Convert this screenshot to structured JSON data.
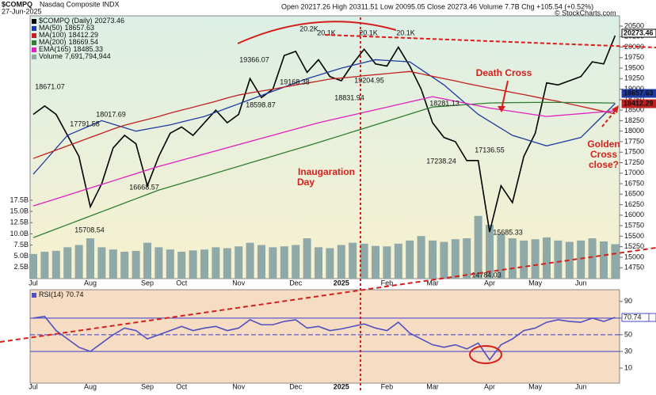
{
  "header": {
    "symbol": "$COMPQ",
    "name": "Nasdaq Composite INDX",
    "date": "27-Jun-2025",
    "quote": "Open 20217.26 High 20311.51 Low 20095.05 Close 20273.46 Volume 7.7B Chg +105.54 (+0.52%)",
    "credit": "© StockCharts.com"
  },
  "chart_data": [
    {
      "type": "line",
      "categories": [
        "Jul",
        null,
        null,
        null,
        null,
        "Aug",
        null,
        null,
        null,
        null,
        "Sep",
        null,
        null,
        "Oct",
        null,
        null,
        null,
        null,
        "Nov",
        null,
        null,
        null,
        null,
        "Dec",
        null,
        null,
        null,
        "2025",
        null,
        null,
        null,
        "Feb",
        null,
        null,
        null,
        "Mar",
        null,
        null,
        null,
        null,
        "Apr",
        null,
        null,
        null,
        "May",
        null,
        null,
        null,
        "Jun",
        null,
        null,
        null
      ],
      "ylim": [
        14490,
        20745
      ],
      "yticks": [
        14750,
        15000,
        15250,
        15500,
        15750,
        16000,
        16250,
        16500,
        16750,
        17000,
        17250,
        17500,
        17750,
        18000,
        18250,
        18500,
        18750,
        19000,
        19250,
        19500,
        19750,
        20000,
        20250,
        20500
      ],
      "series": [
        {
          "name": "$COMPQ (Daily)",
          "color": "#000000",
          "values": [
            18400,
            18600,
            18400,
            17900,
            17400,
            16200,
            16750,
            17600,
            17900,
            17700,
            16700,
            17400,
            17950,
            18100,
            17900,
            18200,
            18500,
            18200,
            18400,
            19250,
            18800,
            19000,
            19800,
            19900,
            19400,
            19700,
            19300,
            19200,
            19600,
            19950,
            19600,
            19550,
            20000,
            19550,
            19000,
            18200,
            17850,
            17750,
            17300,
            17300,
            15600,
            16700,
            16300,
            17400,
            17950,
            19150,
            19100,
            19200,
            19300,
            19650,
            19600,
            20273.46
          ]
        },
        {
          "name": "MA(50)",
          "color": "#1f3aa0",
          "values": [
            16975,
            17283,
            17592,
            17900,
            18017,
            18133,
            18250,
            18167,
            18083,
            18000,
            18050,
            18100,
            18150,
            18217,
            18283,
            18350,
            18450,
            18550,
            18650,
            18750,
            18850,
            18950,
            19050,
            19150,
            19250,
            19333,
            19417,
            19500,
            19567,
            19633,
            19700,
            19683,
            19667,
            19650,
            19467,
            19283,
            19100,
            18867,
            18633,
            18400,
            18233,
            18067,
            17900,
            17817,
            17733,
            17650,
            17717,
            17783,
            17850,
            18119,
            18388,
            18657.63
          ]
        },
        {
          "name": "MA(100)",
          "color": "#c0201f",
          "values": [
            17350,
            17450,
            17550,
            17650,
            17750,
            17850,
            17950,
            18050,
            18140,
            18210,
            18280,
            18350,
            18430,
            18500,
            18570,
            18640,
            18710,
            18790,
            18860,
            18910,
            18955,
            19000,
            19050,
            19100,
            19145,
            19190,
            19240,
            19265,
            19290,
            19320,
            19345,
            19370,
            19395,
            19420,
            19365,
            19305,
            19250,
            19195,
            19135,
            19080,
            19025,
            18975,
            18920,
            18870,
            18815,
            18760,
            18710,
            18650,
            18590,
            18530,
            18470,
            18412.29
          ]
        },
        {
          "name": "MA(200)",
          "color": "#2e7d32",
          "values": [
            15466,
            15569,
            15672,
            15775,
            15877,
            15980,
            16083,
            16186,
            16289,
            16392,
            16494,
            16597,
            16678,
            16759,
            16840,
            16921,
            17002,
            17083,
            17164,
            17245,
            17325,
            17406,
            17487,
            17568,
            17649,
            17730,
            17815,
            17899,
            17984,
            18068,
            18153,
            18237,
            18322,
            18406,
            18491,
            18575,
            18594,
            18613,
            18632,
            18651,
            18670,
            18675,
            18680,
            18682,
            18684,
            18685,
            18684,
            18682,
            18679,
            18676,
            18673,
            18669.54
          ]
        },
        {
          "name": "EMA(165)",
          "color": "#e020c0",
          "values": [
            16220,
            16305,
            16391,
            16476,
            16562,
            16647,
            16733,
            16818,
            16904,
            16989,
            17075,
            17160,
            17234,
            17309,
            17383,
            17457,
            17531,
            17606,
            17680,
            17754,
            17829,
            17903,
            17977,
            18051,
            18126,
            18200,
            18262,
            18324,
            18386,
            18448,
            18510,
            18572,
            18634,
            18696,
            18758,
            18820,
            18766,
            18712,
            18658,
            18604,
            18550,
            18510,
            18470,
            18430,
            18390,
            18350,
            18372,
            18395,
            18417,
            18440,
            18462,
            18485.33
          ]
        }
      ],
      "volume": {
        "name": "Volume",
        "legend_value": "7,691,794,944",
        "color": "#8fa9a9",
        "ylim": [
          0,
          18
        ],
        "yticks": [
          {
            "value": 2.5,
            "label": "2.5B"
          },
          {
            "value": 5,
            "label": "5.0B"
          },
          {
            "value": 7.5,
            "label": "7.5B"
          },
          {
            "value": 10,
            "label": "10.0B"
          },
          {
            "value": 12.5,
            "label": "12.5B"
          },
          {
            "value": 15,
            "label": "15.0B"
          },
          {
            "value": 17.5,
            "label": "17.5B"
          }
        ],
        "values": [
          5.5,
          6,
          6.2,
          7,
          7.5,
          9,
          7,
          6.5,
          6,
          6.2,
          8,
          7,
          6.5,
          6,
          6.3,
          6.5,
          7,
          6.8,
          7.2,
          8,
          7.5,
          7,
          7.2,
          7.5,
          9,
          7,
          6.8,
          7.5,
          8,
          7.8,
          7.3,
          7.2,
          7.8,
          8.5,
          9.5,
          8.5,
          8.2,
          8.8,
          9,
          14,
          12,
          10,
          9,
          8.5,
          8.8,
          9.2,
          8.5,
          8.2,
          8.5,
          9,
          8.3,
          7.691794944
        ]
      },
      "point_labels": [
        "20.2K",
        "20.1K",
        "20.1K",
        "20.1K",
        "19366.07",
        "19168.38",
        "18598.87",
        "18831.94",
        "19204.95",
        "18281.13",
        "17238.24",
        "17136.55",
        "15685.33",
        "14784.03",
        "18671.07",
        "17791.58",
        "18017.69",
        "16668.57",
        "15708.54"
      ],
      "annotations": [
        [
          "Death Cross"
        ],
        [
          "Inaugaration",
          "Day"
        ],
        [
          "Golden",
          "Cross",
          "close?"
        ]
      ]
    },
    {
      "type": "line",
      "categories": [
        "Jul",
        null,
        null,
        null,
        null,
        "Aug",
        null,
        null,
        null,
        null,
        "Sep",
        null,
        null,
        "Oct",
        null,
        null,
        null,
        null,
        "Nov",
        null,
        null,
        null,
        null,
        "Dec",
        null,
        null,
        null,
        "2025",
        null,
        null,
        null,
        "Feb",
        null,
        null,
        null,
        "Mar",
        null,
        null,
        null,
        null,
        "Apr",
        null,
        null,
        null,
        "May",
        null,
        null,
        null,
        "Jun",
        null,
        null,
        null
      ],
      "ylim": [
        -8,
        104
      ],
      "yticks": [
        10,
        30,
        50,
        70,
        90
      ],
      "reference_lines": [
        30,
        50,
        70
      ],
      "series": [
        {
          "name": "RSI(14)",
          "color": "#5050c0",
          "values": [
            70,
            72,
            55,
            45,
            35,
            30,
            40,
            50,
            58,
            55,
            45,
            50,
            55,
            60,
            55,
            58,
            60,
            55,
            58,
            68,
            62,
            62,
            66,
            68,
            58,
            60,
            55,
            57,
            60,
            63,
            58,
            55,
            65,
            52,
            45,
            38,
            35,
            38,
            33,
            40,
            20,
            38,
            45,
            55,
            58,
            65,
            68,
            66,
            65,
            70,
            66,
            70.74
          ]
        }
      ]
    }
  ]
}
